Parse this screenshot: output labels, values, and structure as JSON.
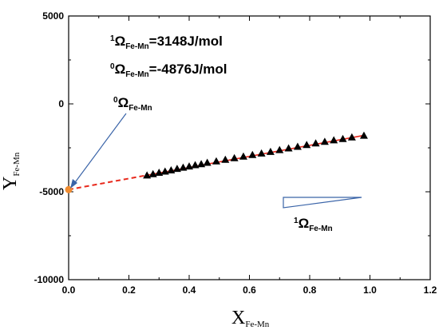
{
  "chart_data": {
    "type": "scatter",
    "xlabel": {
      "main": "X",
      "sub": "Fe-Mn"
    },
    "ylabel": {
      "main": "Y",
      "sub": "Fe-Mn"
    },
    "xlim": [
      0.0,
      1.2
    ],
    "ylim": [
      -10000,
      5000
    ],
    "x_ticks": [
      "0.0",
      "0.2",
      "0.4",
      "0.6",
      "0.8",
      "1.0",
      "1.2"
    ],
    "y_ticks": [
      "5000",
      "0",
      "-5000",
      "-10000"
    ],
    "series": [
      {
        "marker": "triangle",
        "color": "#000000",
        "points": [
          [
            0.26,
            -4060
          ],
          [
            0.28,
            -3990
          ],
          [
            0.3,
            -3910
          ],
          [
            0.32,
            -3840
          ],
          [
            0.34,
            -3770
          ],
          [
            0.36,
            -3690
          ],
          [
            0.38,
            -3620
          ],
          [
            0.4,
            -3550
          ],
          [
            0.42,
            -3480
          ],
          [
            0.44,
            -3420
          ],
          [
            0.46,
            -3340
          ],
          [
            0.49,
            -3260
          ],
          [
            0.52,
            -3170
          ],
          [
            0.55,
            -3080
          ],
          [
            0.58,
            -2990
          ],
          [
            0.61,
            -2900
          ],
          [
            0.64,
            -2810
          ],
          [
            0.67,
            -2720
          ],
          [
            0.7,
            -2620
          ],
          [
            0.73,
            -2520
          ],
          [
            0.76,
            -2430
          ],
          [
            0.79,
            -2330
          ],
          [
            0.82,
            -2240
          ],
          [
            0.85,
            -2150
          ],
          [
            0.88,
            -2060
          ],
          [
            0.91,
            -1990
          ],
          [
            0.94,
            -1900
          ],
          [
            0.98,
            -1800
          ]
        ]
      }
    ],
    "fit_line": {
      "color": "#e8291c",
      "solid_range": [
        0.26,
        0.98
      ],
      "dashed_range": [
        0.0,
        0.26
      ],
      "intercept": -4876,
      "slope": 3148
    },
    "intercept_point": {
      "x": 0.0,
      "y": -4876,
      "color": "#f08c30"
    },
    "arrow_color": "#3a64a8",
    "slope_triangle": {
      "color": "#3a64a8"
    },
    "annotations": {
      "omega1_sup": "1",
      "omega1_main": "Ω",
      "omega1_sub": "Fe-Mn",
      "omega1_value": "=3148J/mol",
      "omega0_sup": "0",
      "omega0_main": "Ω",
      "omega0_sub": "Fe-Mn",
      "omega0_value": "=-4876J/mol",
      "intercept_label_sup": "0",
      "intercept_label_main": "Ω",
      "intercept_label_sub": "Fe-Mn",
      "slope_label_sup": "1",
      "slope_label_main": "Ω",
      "slope_label_sub": "Fe-Mn"
    }
  }
}
